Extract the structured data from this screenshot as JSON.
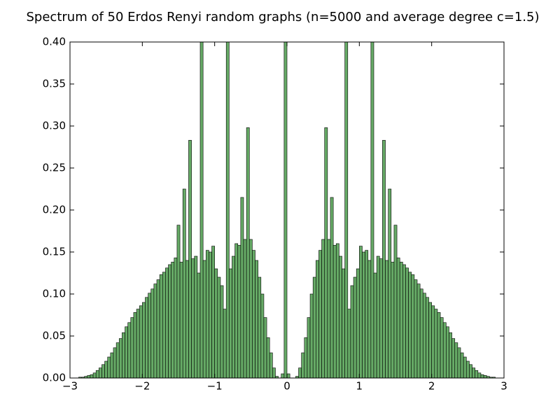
{
  "chart_data": {
    "type": "histogram",
    "title": "Spectrum of 50 Erdos Renyi random graphs (n=5000 and average degree c=1.5)",
    "color": "#66aa66",
    "edgecolor": "#000000",
    "xlim": [
      -3,
      3
    ],
    "ylim": [
      0,
      0.4
    ],
    "xticks": [
      {
        "value": -3,
        "label": "−3"
      },
      {
        "value": -2,
        "label": "−2"
      },
      {
        "value": -1,
        "label": "−1"
      },
      0,
      1,
      2,
      3
    ],
    "yticks": [
      {
        "value": 0,
        "label": "0.00"
      },
      {
        "value": 0.05,
        "label": "0.05"
      },
      {
        "value": 0.1,
        "label": "0.10"
      },
      {
        "value": 0.15,
        "label": "0.15"
      },
      {
        "value": 0.2,
        "label": "0.20"
      },
      {
        "value": 0.25,
        "label": "0.25"
      },
      {
        "value": 0.3,
        "label": "0.30"
      },
      {
        "value": 0.35,
        "label": "0.35"
      },
      {
        "value": 0.4,
        "label": "0.40"
      }
    ],
    "bins": [
      -3,
      -2.96,
      -2.92,
      -2.88,
      -2.84,
      -2.8,
      -2.76,
      -2.72,
      -2.68,
      -2.64,
      -2.6,
      -2.56,
      -2.52,
      -2.48,
      -2.44,
      -2.4,
      -2.36,
      -2.32,
      -2.28,
      -2.24,
      -2.2,
      -2.16,
      -2.12,
      -2.08,
      -2.04,
      -2,
      -1.96,
      -1.92,
      -1.88,
      -1.84,
      -1.8,
      -1.76,
      -1.72,
      -1.68,
      -1.64,
      -1.6,
      -1.56,
      -1.52,
      -1.48,
      -1.44,
      -1.4,
      -1.36,
      -1.32,
      -1.28,
      -1.24,
      -1.2,
      -1.16,
      -1.12,
      -1.08,
      -1.04,
      -1,
      -0.96,
      -0.92,
      -0.88,
      -0.84,
      -0.8,
      -0.76,
      -0.72,
      -0.68,
      -0.64,
      -0.6,
      -0.56,
      -0.52,
      -0.48,
      -0.44,
      -0.4,
      -0.36,
      -0.32,
      -0.28,
      -0.24,
      -0.2,
      -0.16,
      -0.12,
      -0.08,
      -0.04,
      0,
      0.04,
      0.08,
      0.12,
      0.16,
      0.2,
      0.24,
      0.28,
      0.32,
      0.36,
      0.4,
      0.44,
      0.48,
      0.52,
      0.56,
      0.6,
      0.64,
      0.68,
      0.72,
      0.76,
      0.8,
      0.84,
      0.88,
      0.92,
      0.96,
      1,
      1.04,
      1.08,
      1.12,
      1.16,
      1.2,
      1.24,
      1.28,
      1.32,
      1.36,
      1.4,
      1.44,
      1.48,
      1.52,
      1.56,
      1.6,
      1.64,
      1.68,
      1.72,
      1.76,
      1.8,
      1.84,
      1.88,
      1.92,
      1.96,
      2,
      2.04,
      2.08,
      2.12,
      2.16,
      2.2,
      2.24,
      2.28,
      2.32,
      2.36,
      2.4,
      2.44,
      2.48,
      2.52,
      2.56,
      2.6,
      2.64,
      2.68,
      2.72,
      2.76,
      2.8,
      2.84,
      2.88,
      2.92,
      2.96,
      3
    ],
    "values": [
      0,
      0,
      0,
      0.001,
      0.001,
      0.002,
      0.003,
      0.004,
      0.006,
      0.009,
      0.012,
      0.016,
      0.02,
      0.025,
      0.03,
      0.036,
      0.042,
      0.047,
      0.054,
      0.061,
      0.066,
      0.072,
      0.078,
      0.082,
      0.086,
      0.09,
      0.096,
      0.101,
      0.106,
      0.112,
      0.117,
      0.123,
      0.126,
      0.131,
      0.135,
      0.138,
      0.143,
      0.182,
      0.138,
      0.225,
      0.14,
      0.283,
      0.142,
      0.145,
      0.125,
      0.4,
      0.14,
      0.152,
      0.15,
      0.157,
      0.13,
      0.12,
      0.11,
      0.082,
      0.4,
      0.13,
      0.145,
      0.16,
      0.158,
      0.215,
      0.165,
      0.298,
      0.165,
      0.152,
      0.14,
      0.12,
      0.1,
      0.072,
      0.048,
      0.03,
      0.012,
      0.002,
      0,
      0.005,
      0.4,
      0.005,
      0,
      0,
      0.002,
      0.012,
      0.03,
      0.048,
      0.072,
      0.1,
      0.12,
      0.14,
      0.152,
      0.165,
      0.298,
      0.165,
      0.215,
      0.158,
      0.16,
      0.145,
      0.13,
      0.4,
      0.082,
      0.11,
      0.12,
      0.13,
      0.157,
      0.15,
      0.152,
      0.14,
      0.4,
      0.125,
      0.145,
      0.142,
      0.283,
      0.14,
      0.225,
      0.138,
      0.182,
      0.143,
      0.138,
      0.135,
      0.131,
      0.126,
      0.123,
      0.117,
      0.112,
      0.106,
      0.101,
      0.096,
      0.09,
      0.086,
      0.082,
      0.078,
      0.072,
      0.066,
      0.061,
      0.054,
      0.047,
      0.042,
      0.036,
      0.03,
      0.025,
      0.02,
      0.016,
      0.012,
      0.009,
      0.006,
      0.004,
      0.003,
      0.002,
      0.001,
      0.001,
      0,
      0,
      0
    ]
  }
}
